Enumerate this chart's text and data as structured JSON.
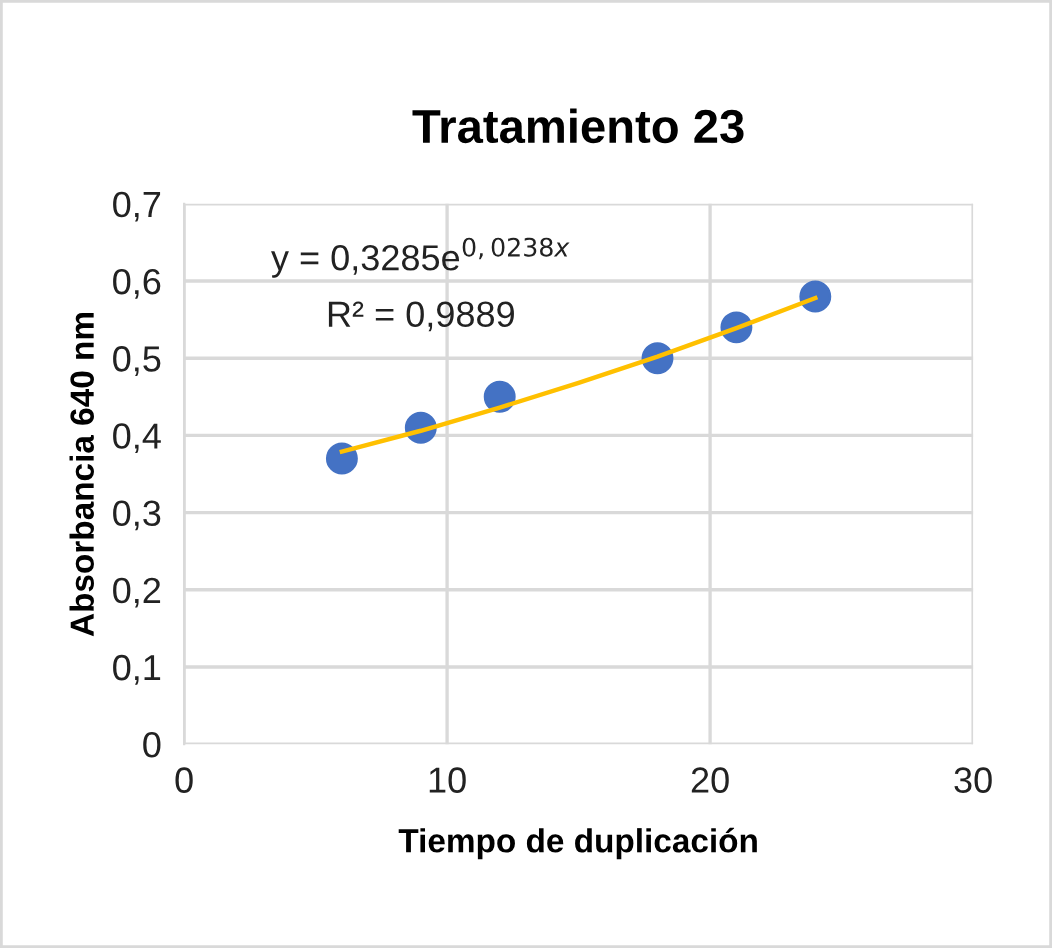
{
  "chart_data": {
    "type": "scatter",
    "title": "Tratamiento 23",
    "xlabel": "Tiempo de duplicación",
    "ylabel": "Absorbancia 640 nm",
    "series": [
      {
        "color": "#4472c4",
        "x": [
          6,
          9,
          12,
          18,
          21,
          24
        ],
        "values": [
          0.37,
          0.41,
          0.45,
          0.5,
          0.54,
          0.58
        ],
        "marker": "circle"
      },
      {
        "type": "line",
        "color": "#ffc000",
        "x": [
          6,
          9,
          12,
          15,
          18,
          21,
          24
        ],
        "values": [
          0.379,
          0.406,
          0.436,
          0.468,
          0.502,
          0.539,
          0.578
        ],
        "marker": "none"
      }
    ],
    "annotations": [
      "y = 0,3285e$^{0,0238x}$",
      "R² = 0,9889"
    ],
    "xlim": [
      0,
      30
    ],
    "xticks": [
      0,
      10,
      20,
      30
    ],
    "ylim": [
      0,
      0.7
    ],
    "yticks": [
      0,
      {
        "value": 0.1,
        "label": "0,1"
      },
      {
        "value": 0.2,
        "label": "0,2"
      },
      {
        "value": 0.3,
        "label": "0,3"
      },
      {
        "value": 0.4,
        "label": "0,4"
      },
      {
        "value": 0.5,
        "label": "0,5"
      },
      {
        "value": 0.6,
        "label": "0,6"
      },
      {
        "value": 0.7,
        "label": "0,7"
      }
    ],
    "grid": true,
    "legend": false
  }
}
